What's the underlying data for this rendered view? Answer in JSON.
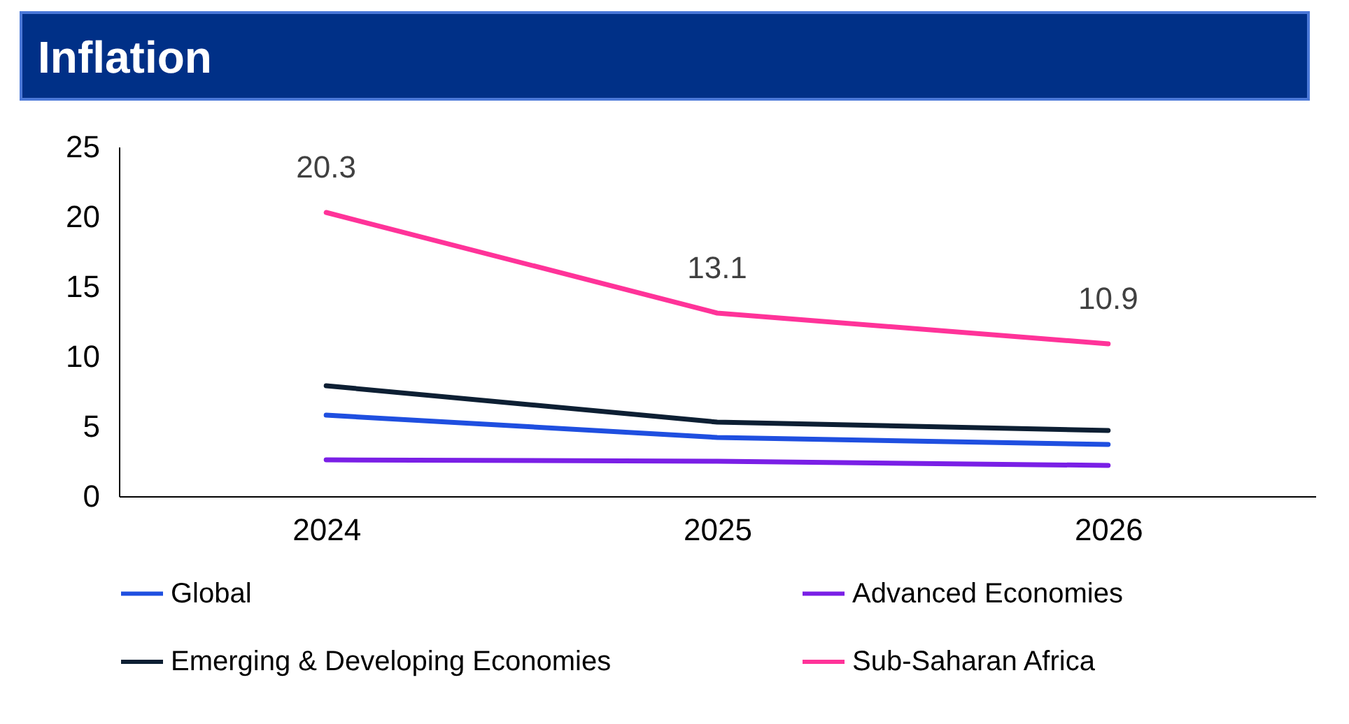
{
  "chart_data": {
    "type": "line",
    "title": "Inflation",
    "categories": [
      "2024",
      "2025",
      "2026"
    ],
    "series": [
      {
        "name": "Global",
        "color": "#1f4fe0",
        "values": [
          5.8,
          4.2,
          3.7
        ]
      },
      {
        "name": "Advanced Economies",
        "color": "#7a1fe6",
        "values": [
          2.6,
          2.5,
          2.2
        ]
      },
      {
        "name": "Emerging & Developing Economies",
        "color": "#0d1f33",
        "values": [
          7.9,
          5.3,
          4.7
        ]
      },
      {
        "name": "Sub-Saharan Africa",
        "color": "#ff3399",
        "values": [
          20.3,
          13.1,
          10.9
        ],
        "value_labels": [
          "20.3",
          "13.1",
          "10.9"
        ]
      }
    ],
    "ylim": [
      0,
      25
    ],
    "yticks": [
      0,
      5,
      10,
      15,
      20,
      25
    ],
    "legend": "bottom",
    "line_style": "solid"
  }
}
